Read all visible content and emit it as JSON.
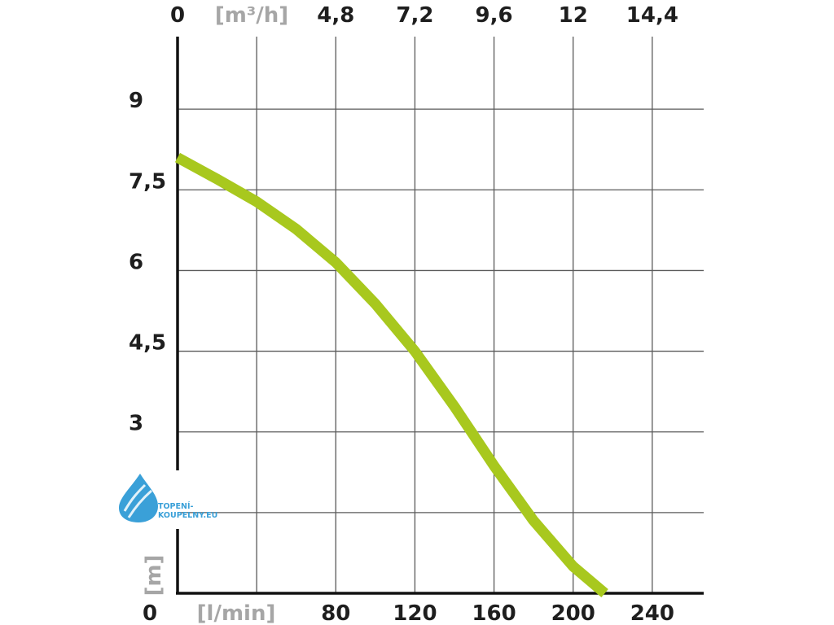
{
  "chart_data": {
    "type": "line",
    "title": "",
    "series": [
      {
        "color": "#a8c81e",
        "x": [
          0,
          20,
          40,
          60,
          80,
          100,
          120,
          140,
          160,
          180,
          200,
          216
        ],
        "y": [
          8.1,
          7.7,
          7.28,
          6.77,
          6.15,
          5.38,
          4.5,
          3.47,
          2.37,
          1.35,
          0.5,
          0
        ]
      }
    ],
    "x_axis": {
      "unit": "[l/min]",
      "min": 0,
      "max": 266,
      "ticks": [
        0,
        80,
        120,
        160,
        200,
        240
      ],
      "tick_labels": [
        "0",
        "80",
        "120",
        "160",
        "200",
        "240"
      ]
    },
    "x2_axis": {
      "unit": "[m³/h]",
      "ticks": [
        0,
        80,
        120,
        160,
        200,
        240
      ],
      "tick_labels": [
        "0",
        "4,8",
        "7,2",
        "9,6",
        "12",
        "14,4"
      ]
    },
    "y_axis": {
      "unit": "[m]",
      "min": 0,
      "max": 10.5,
      "ticks": [
        3,
        4.5,
        6,
        7.5,
        9
      ],
      "tick_labels": [
        "3",
        "4,5",
        "6",
        "7,5",
        "9"
      ]
    },
    "grid": {
      "vertical": [
        40,
        80,
        120,
        160,
        200,
        240
      ],
      "horizontal": [
        1.5,
        3,
        4.5,
        6,
        7.5,
        9
      ]
    }
  },
  "logo": {
    "text_line1": "TOPENÍ-",
    "text_line2": "KOUPELNY.EU",
    "color": "#3aa0d8"
  },
  "colors": {
    "curve": "#a8c81e",
    "grid": "#5a5a5a",
    "axis": "#111111",
    "unit_text": "#a6a6a6",
    "tick_text": "#1e1e1e"
  }
}
